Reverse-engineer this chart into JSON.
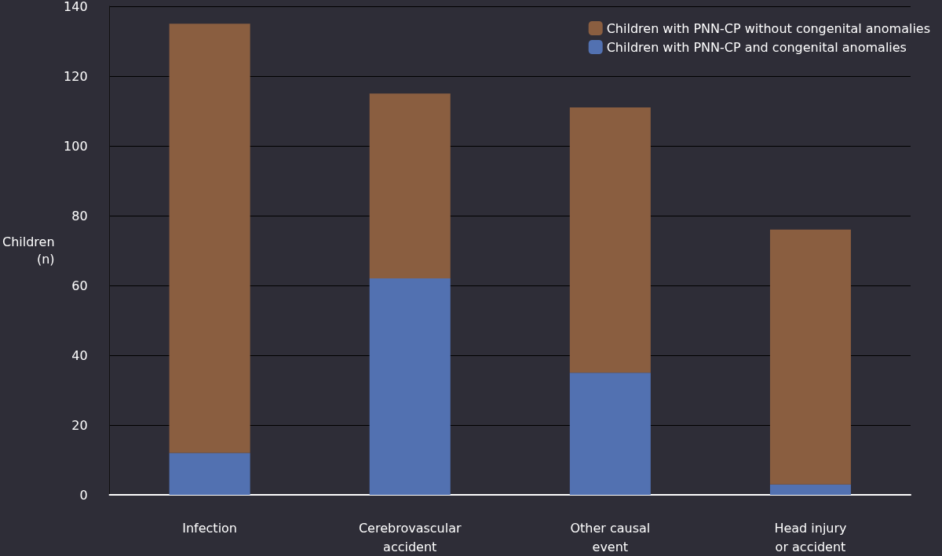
{
  "chart_data": {
    "type": "bar",
    "stacked": true,
    "ylabel": "Children\n(n)",
    "categories": [
      "Infection",
      "Cerebrovascular\naccident",
      "Other causal\nevent",
      "Head injury\nor accident"
    ],
    "series": [
      {
        "name": "Children with PNN-CP and congenital anomalies",
        "color": "#5271b1",
        "values": [
          12,
          62,
          35,
          3
        ]
      },
      {
        "name": "Children with PNN-CP without congenital anomalies",
        "color": "#8a5e40",
        "values": [
          123,
          53,
          76,
          73
        ]
      }
    ],
    "ylim": [
      0,
      140
    ],
    "yticks": [
      0,
      20,
      40,
      60,
      80,
      100,
      120,
      140
    ],
    "grid": "y",
    "legend": "top right"
  }
}
